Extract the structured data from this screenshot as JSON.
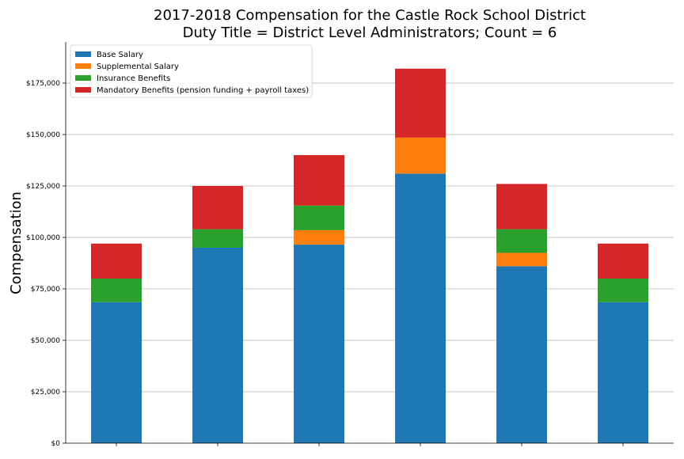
{
  "chart_data": {
    "type": "bar",
    "stacked": true,
    "title": "2017-2018 Compensation for the Castle Rock School District",
    "subtitle": "Duty Title = District Level Administrators; Count = 6",
    "xlabel": "",
    "ylabel": "Compensation",
    "ylim": [
      0,
      195000
    ],
    "yticks": [
      0,
      25000,
      50000,
      75000,
      100000,
      125000,
      150000,
      175000
    ],
    "ytick_labels": [
      "$0",
      "$25,000",
      "$50,000",
      "$75,000",
      "$100,000",
      "$125,000",
      "$150,000",
      "$175,000"
    ],
    "categories": [
      "",
      "",
      "",
      "",
      "",
      ""
    ],
    "grid": "horizontal",
    "legend_position": "top-left",
    "series": [
      {
        "name": "Base Salary",
        "color": "#1f77b4",
        "values": [
          68500,
          95000,
          96500,
          131000,
          86000,
          68500
        ]
      },
      {
        "name": "Supplemental Salary",
        "color": "#ff7f0e",
        "values": [
          0,
          0,
          7000,
          17500,
          6500,
          0
        ]
      },
      {
        "name": "Insurance Benefits",
        "color": "#2ca02c",
        "values": [
          11500,
          9000,
          12000,
          0,
          11500,
          11500
        ]
      },
      {
        "name": "Mandatory Benefits (pension funding + payroll taxes)",
        "color": "#d62728",
        "values": [
          17000,
          21000,
          24500,
          33500,
          22000,
          17000
        ]
      }
    ]
  }
}
